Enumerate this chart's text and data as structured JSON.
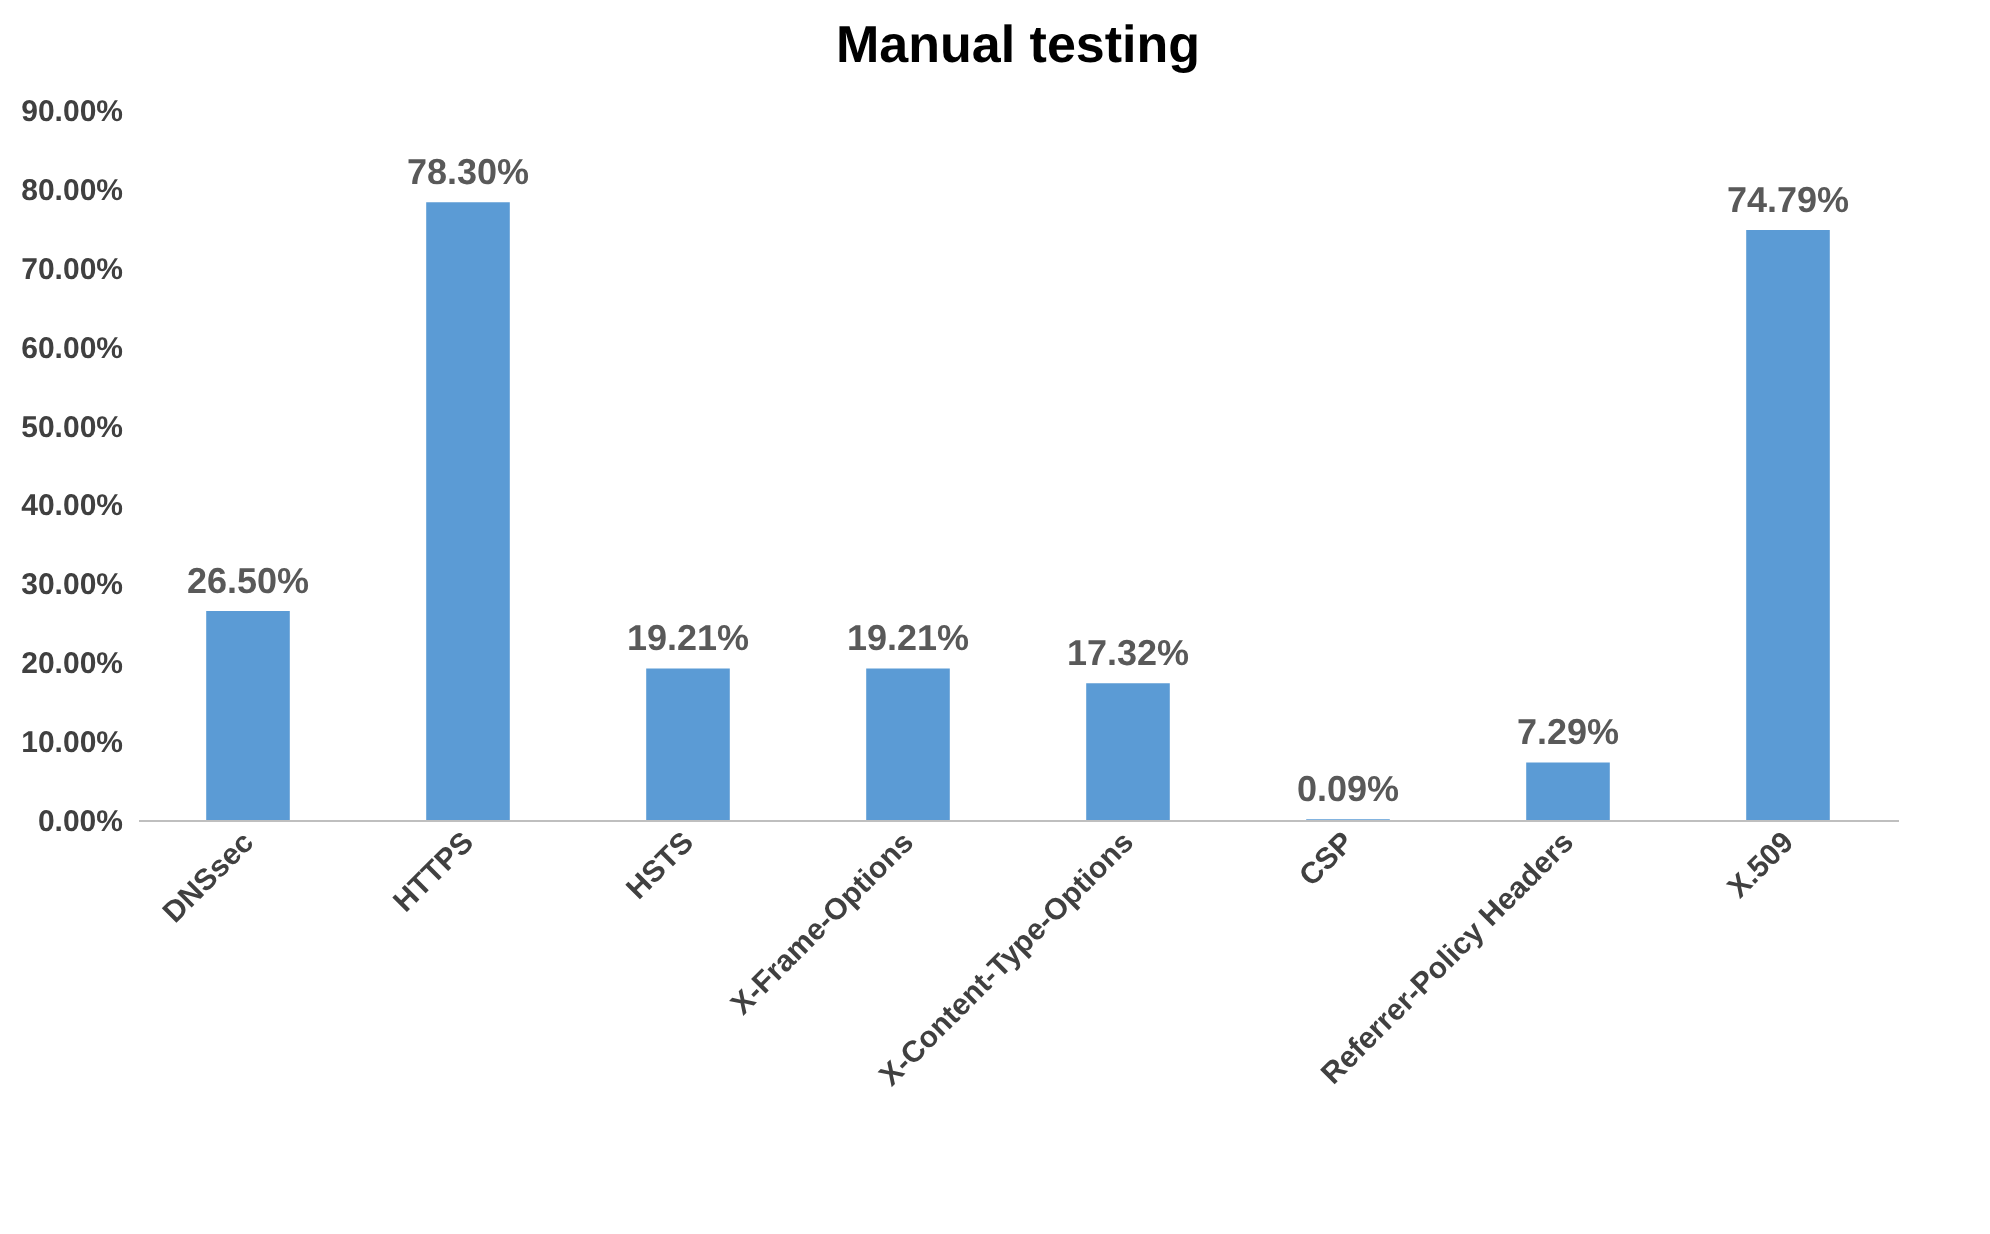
{
  "chart_data": {
    "type": "bar",
    "title": "Manual testing",
    "categories": [
      "DNSsec",
      "HTTPS",
      "HSTS",
      "X-Frame-Options",
      "X-Content-Type-Options",
      "CSP",
      "Referrer-Policy Headers",
      "X.509"
    ],
    "values": [
      26.5,
      78.3,
      19.21,
      19.21,
      17.32,
      0.09,
      7.29,
      74.79
    ],
    "value_labels": [
      "26.50%",
      "78.30%",
      "19.21%",
      "19.21%",
      "17.32%",
      "0.09%",
      "7.29%",
      "74.79%"
    ],
    "color": "#5b9bd5",
    "ylim": [
      0,
      90
    ],
    "yticks": [
      {
        "value": 0,
        "label": "0.00%"
      },
      {
        "value": 10,
        "label": "10.00%"
      },
      {
        "value": 20,
        "label": "20.00%"
      },
      {
        "value": 30,
        "label": "30.00%"
      },
      {
        "value": 40,
        "label": "40.00%"
      },
      {
        "value": 50,
        "label": "50.00%"
      },
      {
        "value": 60,
        "label": "60.00%"
      },
      {
        "value": 70,
        "label": "70.00%"
      },
      {
        "value": 80,
        "label": "80.00%"
      },
      {
        "value": 90,
        "label": "90.00%"
      }
    ]
  }
}
